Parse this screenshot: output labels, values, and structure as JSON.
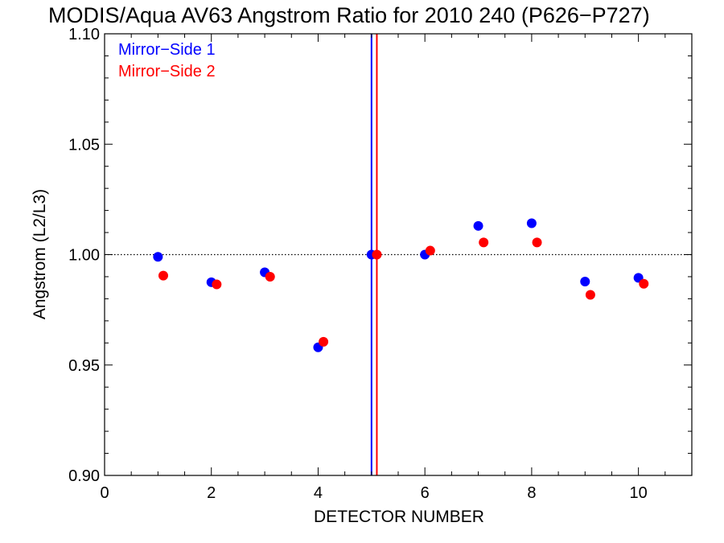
{
  "chart_data": {
    "type": "scatter",
    "title": "MODIS/Aqua AV63 Angstrom Ratio for 2010 240 (P626−P727)",
    "xlabel": "DETECTOR NUMBER",
    "ylabel": "Angstrom (L2/L3)",
    "xlim": [
      0,
      11
    ],
    "ylim": [
      0.9,
      1.1
    ],
    "x_ticks": [
      0,
      2,
      4,
      6,
      8,
      10
    ],
    "x_tick_labels": [
      "0",
      "2",
      "4",
      "6",
      "8",
      "10"
    ],
    "y_ticks": [
      0.9,
      0.95,
      1.0,
      1.05,
      1.1
    ],
    "y_tick_labels": [
      "0.90",
      "0.95",
      "1.00",
      "1.05",
      "1.10"
    ],
    "reference_line_y": 1.0,
    "legend_position": "top-left",
    "series": [
      {
        "name": "Mirror−Side 1",
        "color": "#0000ff",
        "x": [
          1,
          2,
          3,
          4,
          5,
          6,
          7,
          8,
          9,
          10
        ],
        "y": [
          0.999,
          0.9875,
          0.992,
          0.958,
          1.0,
          1.0,
          1.013,
          1.0142,
          0.9878,
          0.9895
        ],
        "marker_line_x": 5.0
      },
      {
        "name": "Mirror−Side 2",
        "color": "#ff0000",
        "x": [
          1.1,
          2.1,
          3.1,
          4.1,
          5.1,
          6.1,
          7.1,
          8.1,
          9.1,
          10.1
        ],
        "y": [
          0.9905,
          0.9865,
          0.99,
          0.9605,
          1.0,
          1.0018,
          1.0055,
          1.0055,
          0.9818,
          0.9868
        ],
        "marker_line_x": 5.1
      }
    ]
  }
}
